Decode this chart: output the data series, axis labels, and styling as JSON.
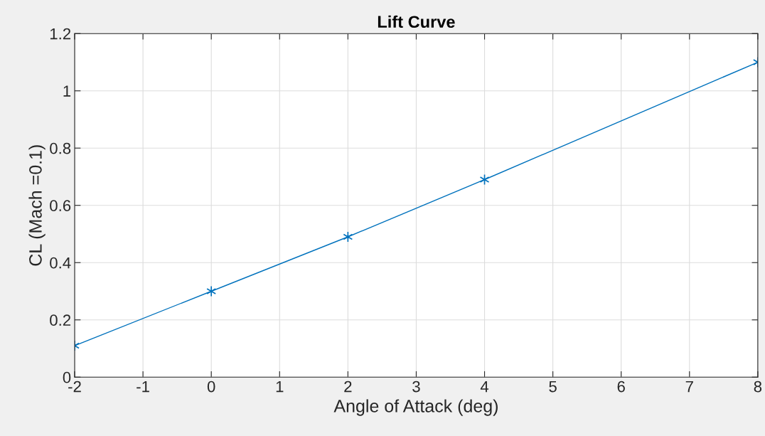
{
  "chart_data": {
    "type": "line",
    "title": "Lift Curve",
    "xlabel": "Angle of Attack (deg)",
    "ylabel": "CL (Mach =0.1)",
    "x": [
      -2,
      0,
      2,
      4,
      8
    ],
    "series": [
      {
        "color": "#0072bd",
        "values": [
          0.11,
          0.3,
          0.49,
          0.69,
          1.1
        ]
      }
    ],
    "xlim": [
      -2,
      8
    ],
    "xticks": [
      -2,
      -1,
      0,
      1,
      2,
      3,
      4,
      5,
      6,
      7,
      8
    ],
    "ylim": [
      0,
      1.2
    ],
    "yticks": [
      0,
      0.2,
      0.4,
      0.6,
      0.8,
      1,
      1.2
    ],
    "grid": true,
    "marker": "cross",
    "line_style": "solid",
    "legend": false
  }
}
